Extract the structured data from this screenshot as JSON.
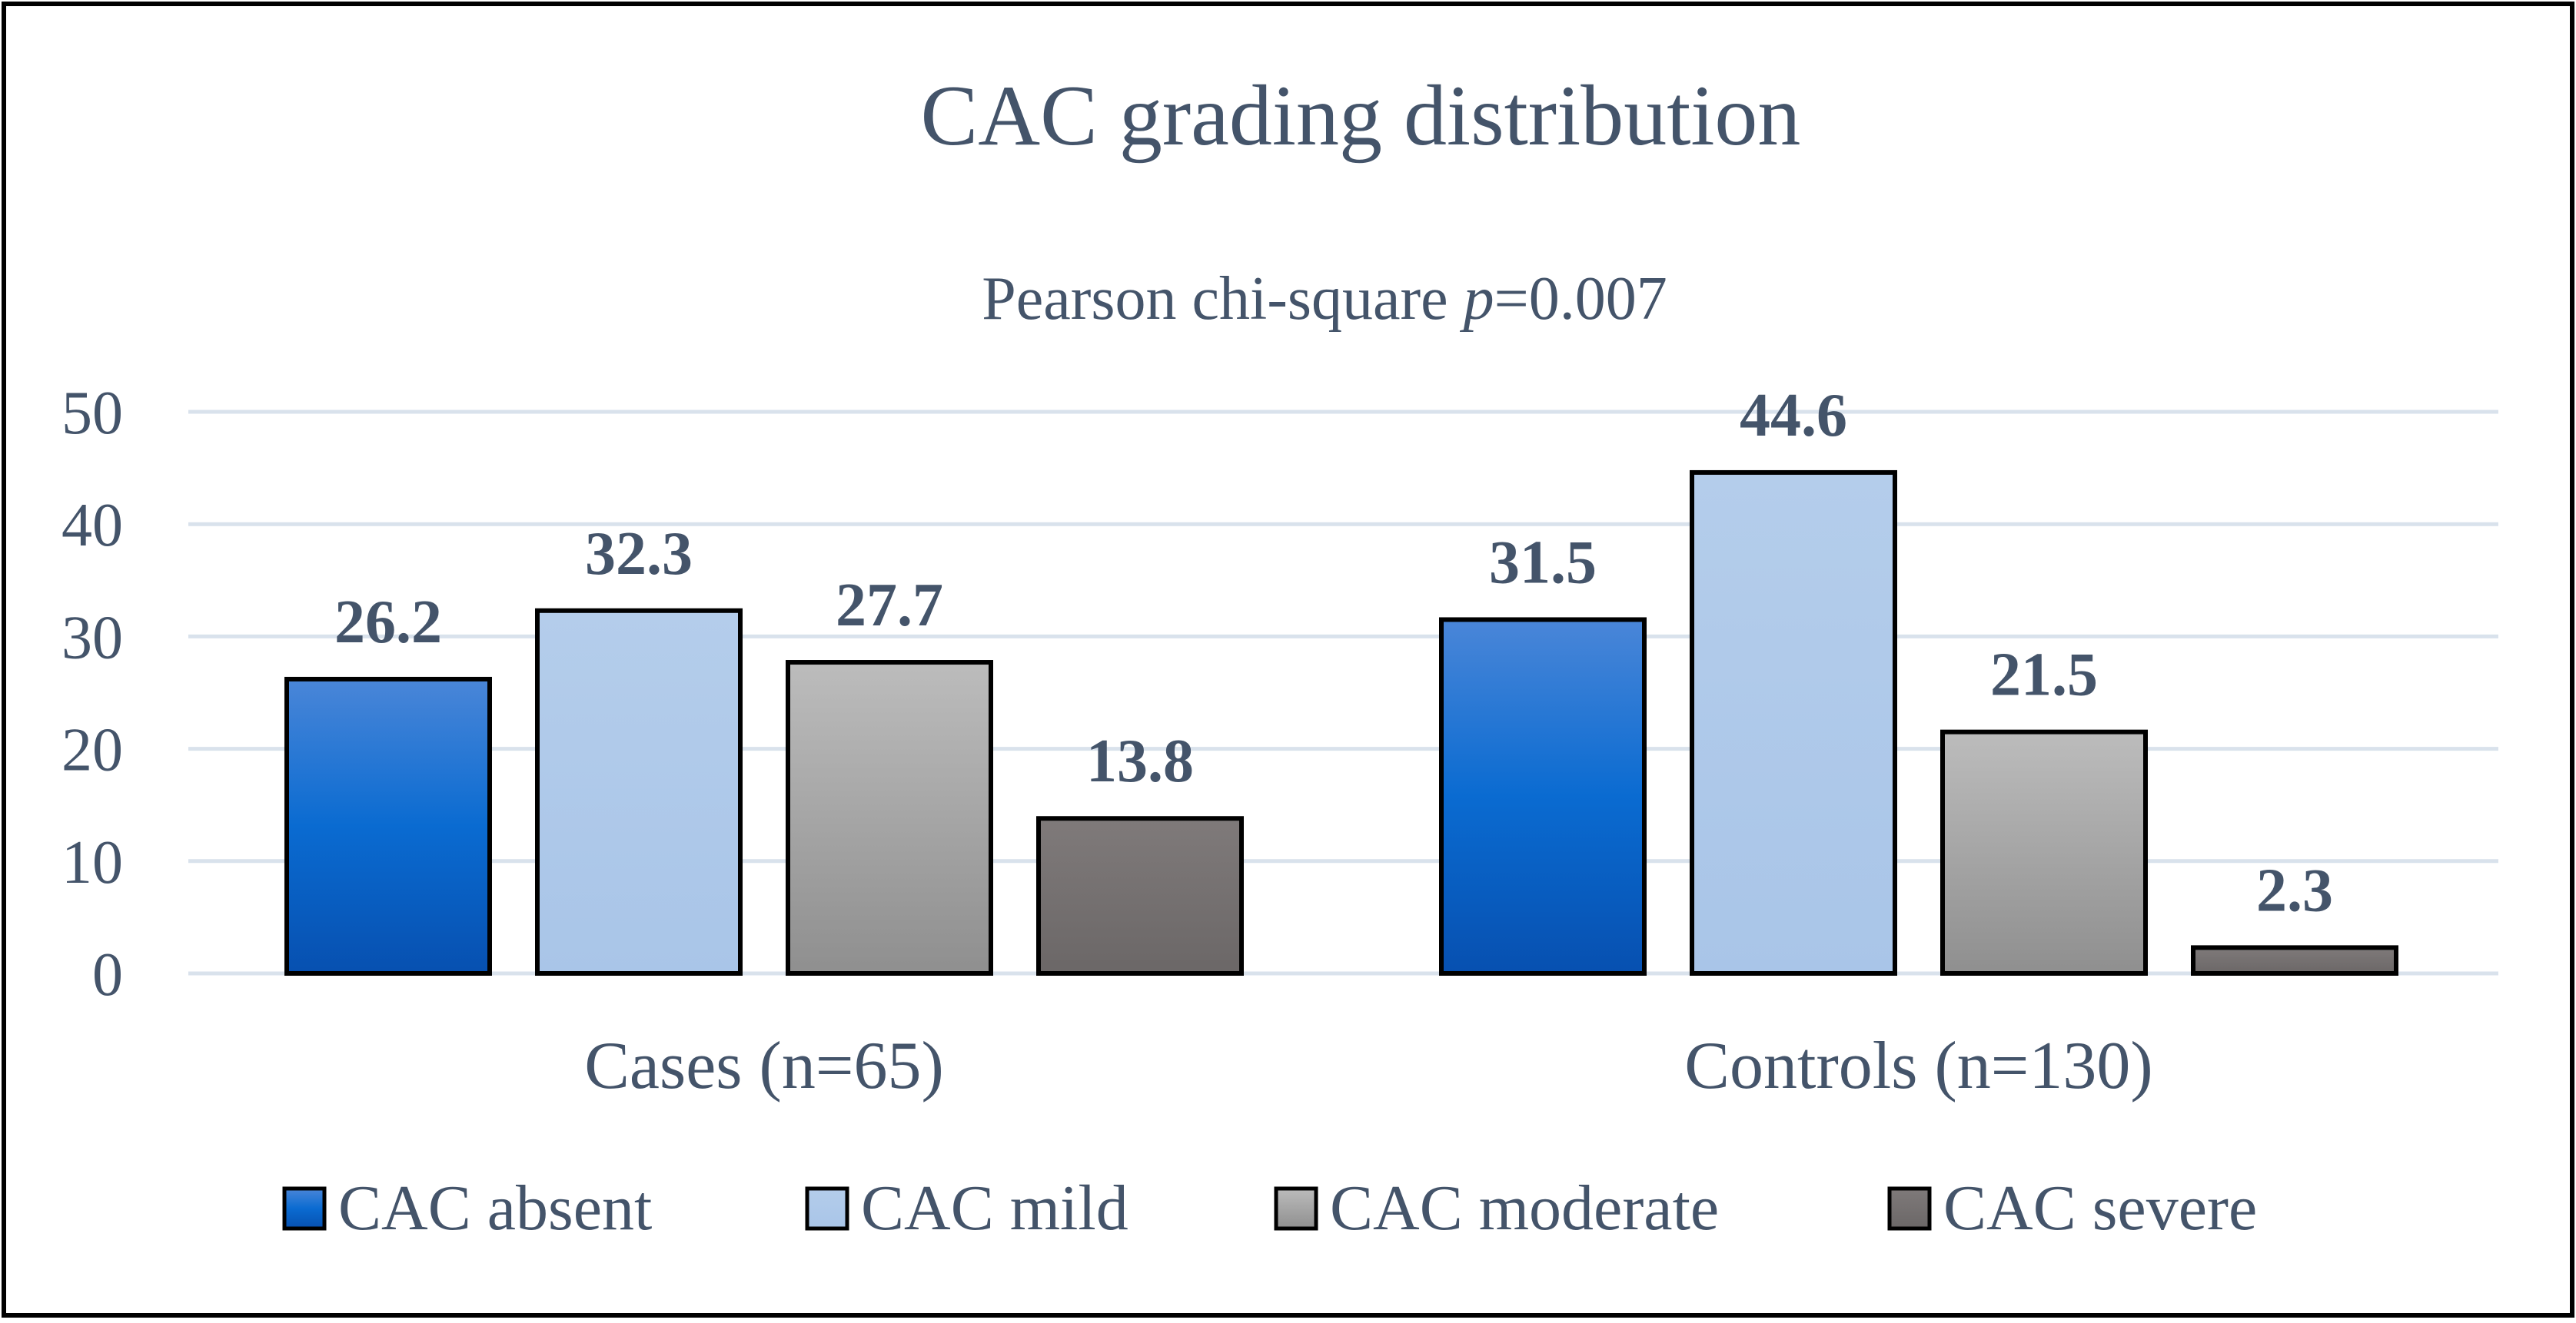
{
  "chart_data": {
    "type": "bar",
    "title": "CAC grading distribution",
    "subtitle_prefix": "Pearson chi-square ",
    "subtitle_italic": "p",
    "subtitle_suffix": "=0.007",
    "categories": [
      "Cases (n=65)",
      "Controls (n=130)"
    ],
    "series": [
      {
        "name": "CAC absent",
        "values": [
          26.2,
          31.5
        ],
        "value_labels": [
          "26.2",
          "31.5"
        ],
        "color": "#0a63c9"
      },
      {
        "name": "CAC mild",
        "values": [
          32.3,
          44.6
        ],
        "value_labels": [
          "32.3",
          "44.6"
        ],
        "color": "#aec8e9"
      },
      {
        "name": "CAC moderate",
        "values": [
          27.7,
          21.5
        ],
        "value_labels": [
          "27.7",
          "21.5"
        ],
        "color": "#a6a6a6"
      },
      {
        "name": "CAC severe",
        "values": [
          13.8,
          2.3
        ],
        "value_labels": [
          "13.8",
          "2.3"
        ],
        "color": "#767171"
      }
    ],
    "yticks": [
      "0",
      "10",
      "20",
      "30",
      "40",
      "50"
    ],
    "ylim": [
      0,
      50
    ],
    "grid": true,
    "legend_position": "bottom",
    "colors": {
      "text": "#44546a",
      "grid": "#d9e2ec",
      "bar_outline": "#000000",
      "frame": "#000000"
    }
  }
}
